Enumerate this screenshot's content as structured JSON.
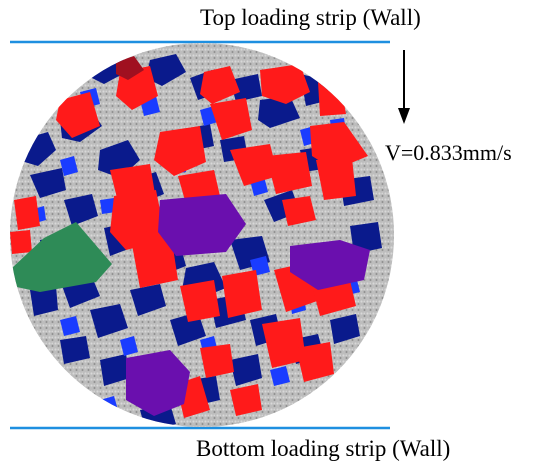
{
  "labels": {
    "top_wall": "Top loading strip (Wall)",
    "bottom_wall": "Bottom loading strip (Wall)",
    "velocity": "V=0.833mm/s"
  },
  "colors": {
    "wall_line": "#1e8fe0",
    "mortar_gray": "#b3b3b3",
    "aggregate_red": "#ff1a1a",
    "aggregate_dark_blue": "#0a1a8c",
    "aggregate_blue": "#1a3cff",
    "aggregate_purple": "#6a0fae",
    "aggregate_green": "#2e8b57",
    "aggregate_dark_red": "#a01020",
    "arrow": "#000000"
  }
}
